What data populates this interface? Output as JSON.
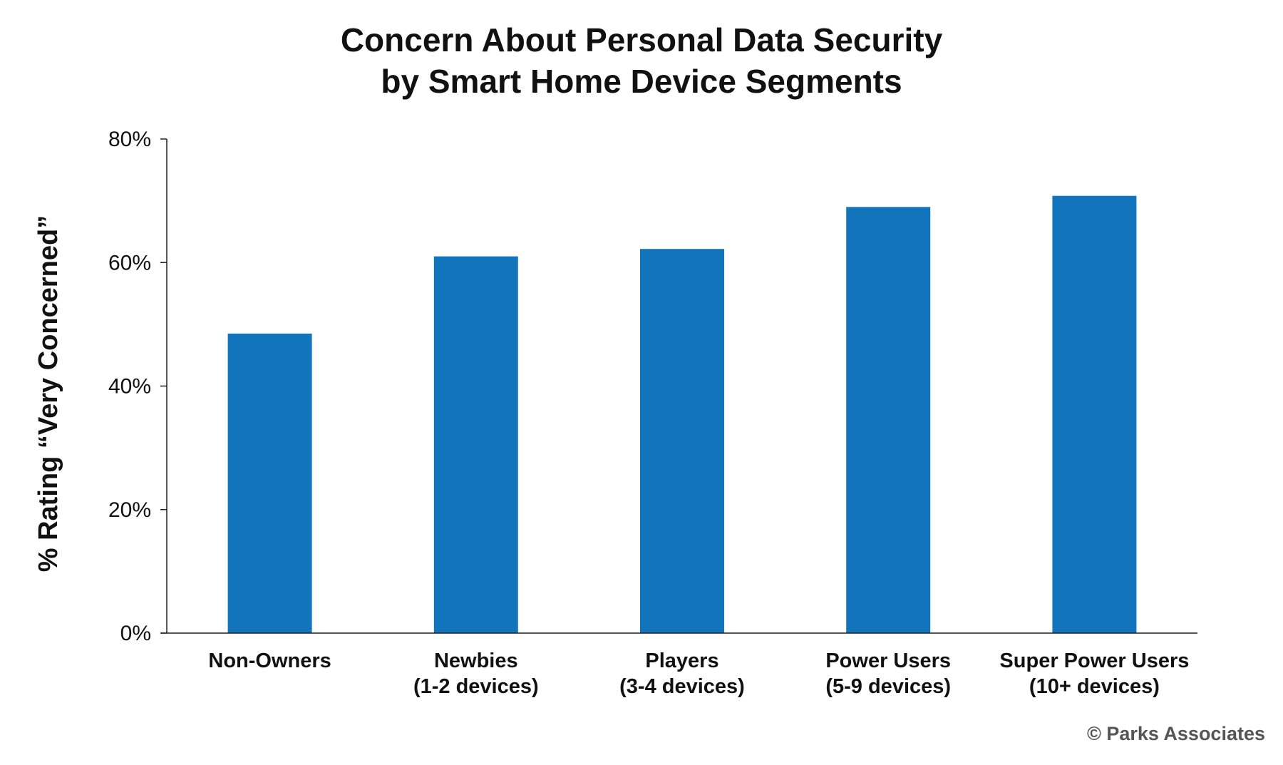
{
  "chart_data": {
    "type": "bar",
    "title_lines": [
      "Concern About Personal Data Security",
      "by Smart Home Device Segments"
    ],
    "ylabel": "% Rating “Very Concerned”",
    "xlabel": "",
    "categories": [
      [
        "Non-Owners"
      ],
      [
        "Newbies",
        "(1-2 devices)"
      ],
      [
        "Players",
        "(3-4 devices)"
      ],
      [
        "Power Users",
        "(5-9 devices)"
      ],
      [
        "Super Power Users",
        "(10+ devices)"
      ]
    ],
    "values": [
      48.5,
      61,
      62.2,
      69,
      70.8
    ],
    "ylim": [
      0,
      80
    ],
    "yticks": [
      0,
      20,
      40,
      60,
      80
    ],
    "ytick_labels": [
      "0%",
      "20%",
      "40%",
      "60%",
      "80%"
    ],
    "bar_color": "#1275bc",
    "grid": false,
    "legend": "none"
  },
  "credit": "© Parks Associates"
}
